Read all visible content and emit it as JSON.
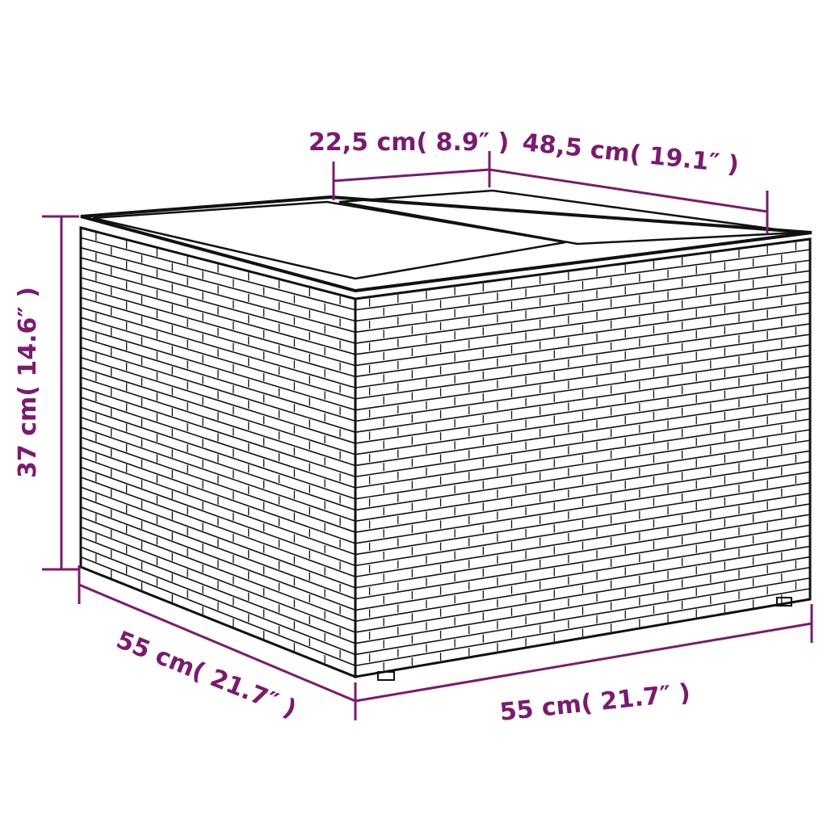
{
  "dimensions": {
    "top_depth": "22,5 cm( 8.9″  )",
    "top_width": "48,5 cm( 19.1″  )",
    "height": "37 cm( 14.6″  )",
    "depth": "55 cm( 21.7″  )",
    "width": "55 cm( 21.7″  )"
  },
  "colors": {
    "dimension": "#7b1a6e",
    "outline": "#111111",
    "background": "#ffffff"
  }
}
